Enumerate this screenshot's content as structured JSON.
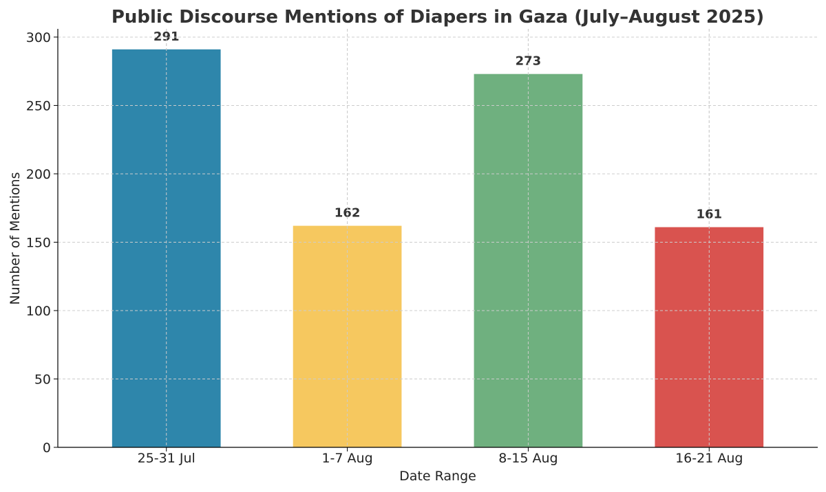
{
  "chart_data": {
    "type": "bar",
    "title": "Public Discourse Mentions of Diapers in Gaza (July–August 2025)",
    "xlabel": "Date Range",
    "ylabel": "Number of Mentions",
    "categories": [
      "25-31 Jul",
      "1-7 Aug",
      "8-15 Aug",
      "16-21 Aug"
    ],
    "values": [
      291,
      162,
      273,
      161
    ],
    "colors": [
      "#2e86ab",
      "#f6c85f",
      "#6fb07f",
      "#d9534f"
    ],
    "ylim": [
      0,
      306
    ],
    "yticks": [
      0,
      50,
      100,
      150,
      200,
      250,
      300
    ],
    "grid": true,
    "legend": "none"
  }
}
